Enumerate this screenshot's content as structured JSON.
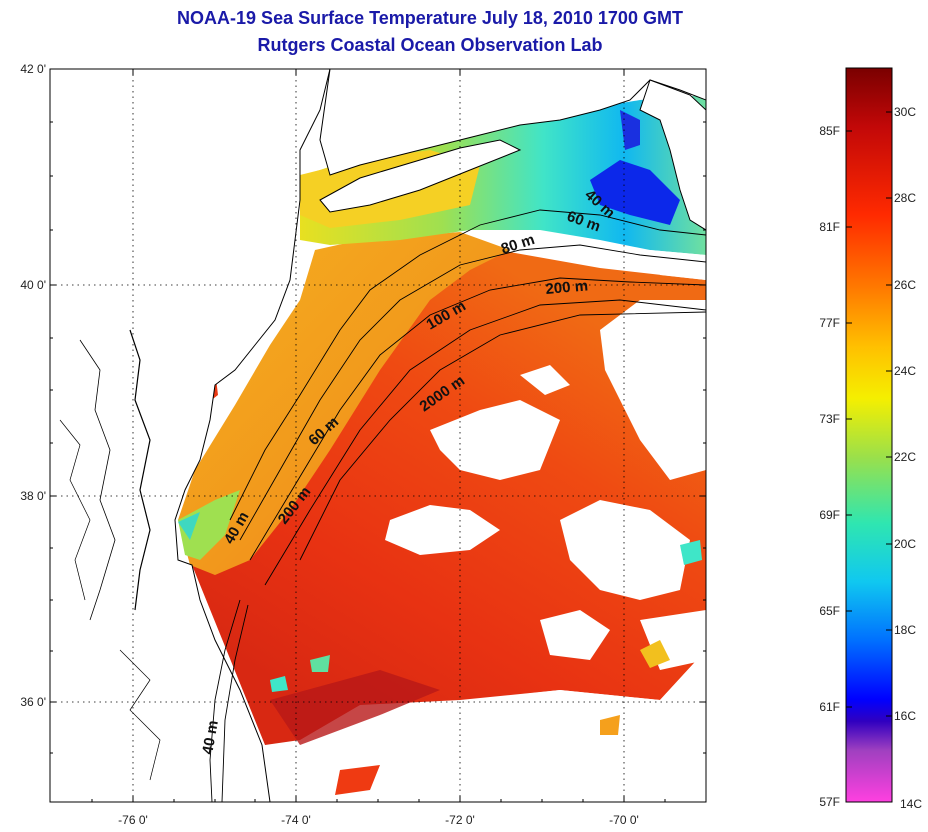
{
  "title": {
    "line1": "NOAA-19 Sea Surface Temperature July 18, 2010 1700 GMT",
    "line2": "Rutgers Coastal Ocean Observation Lab"
  },
  "map": {
    "lat_range": [
      35,
      42
    ],
    "lon_range": [
      -77,
      -69
    ],
    "lat_ticks": [
      "42 0'",
      "40 0'",
      "38 0'",
      "36 0'"
    ],
    "lon_ticks": [
      "-76 0'",
      "-74 0'",
      "-72 0'",
      "-70 0'"
    ],
    "grid": "dotted",
    "contour_labels": [
      "40 m",
      "60 m",
      "80 m",
      "200 m",
      "100 m",
      "2000 m",
      "60 m",
      "200 m",
      "40 m",
      "40 m"
    ]
  },
  "colorbar": {
    "fahrenheit_labels": [
      "85F",
      "81F",
      "77F",
      "73F",
      "69F",
      "65F",
      "61F",
      "57F"
    ],
    "celsius_labels": [
      "30C",
      "28C",
      "26C",
      "24C",
      "22C",
      "20C",
      "18C",
      "16C",
      "14C"
    ],
    "colors": [
      "#7a0000",
      "#d81010",
      "#ff4400",
      "#ff9a00",
      "#f0e600",
      "#a8e63a",
      "#20e0c0",
      "#00a0ff",
      "#0010ff",
      "#7a30c0",
      "#ff40d0"
    ]
  },
  "palette": {
    "warm_dark": "#c81e14",
    "warm": "#ee3a12",
    "orange": "#f58c1c",
    "yellow": "#f2d21e",
    "green": "#8fe05a",
    "cyan": "#3fe6c8",
    "blue": "#1070ff",
    "deep_blue": "#0a20e8",
    "cloud": "#ffffff"
  }
}
